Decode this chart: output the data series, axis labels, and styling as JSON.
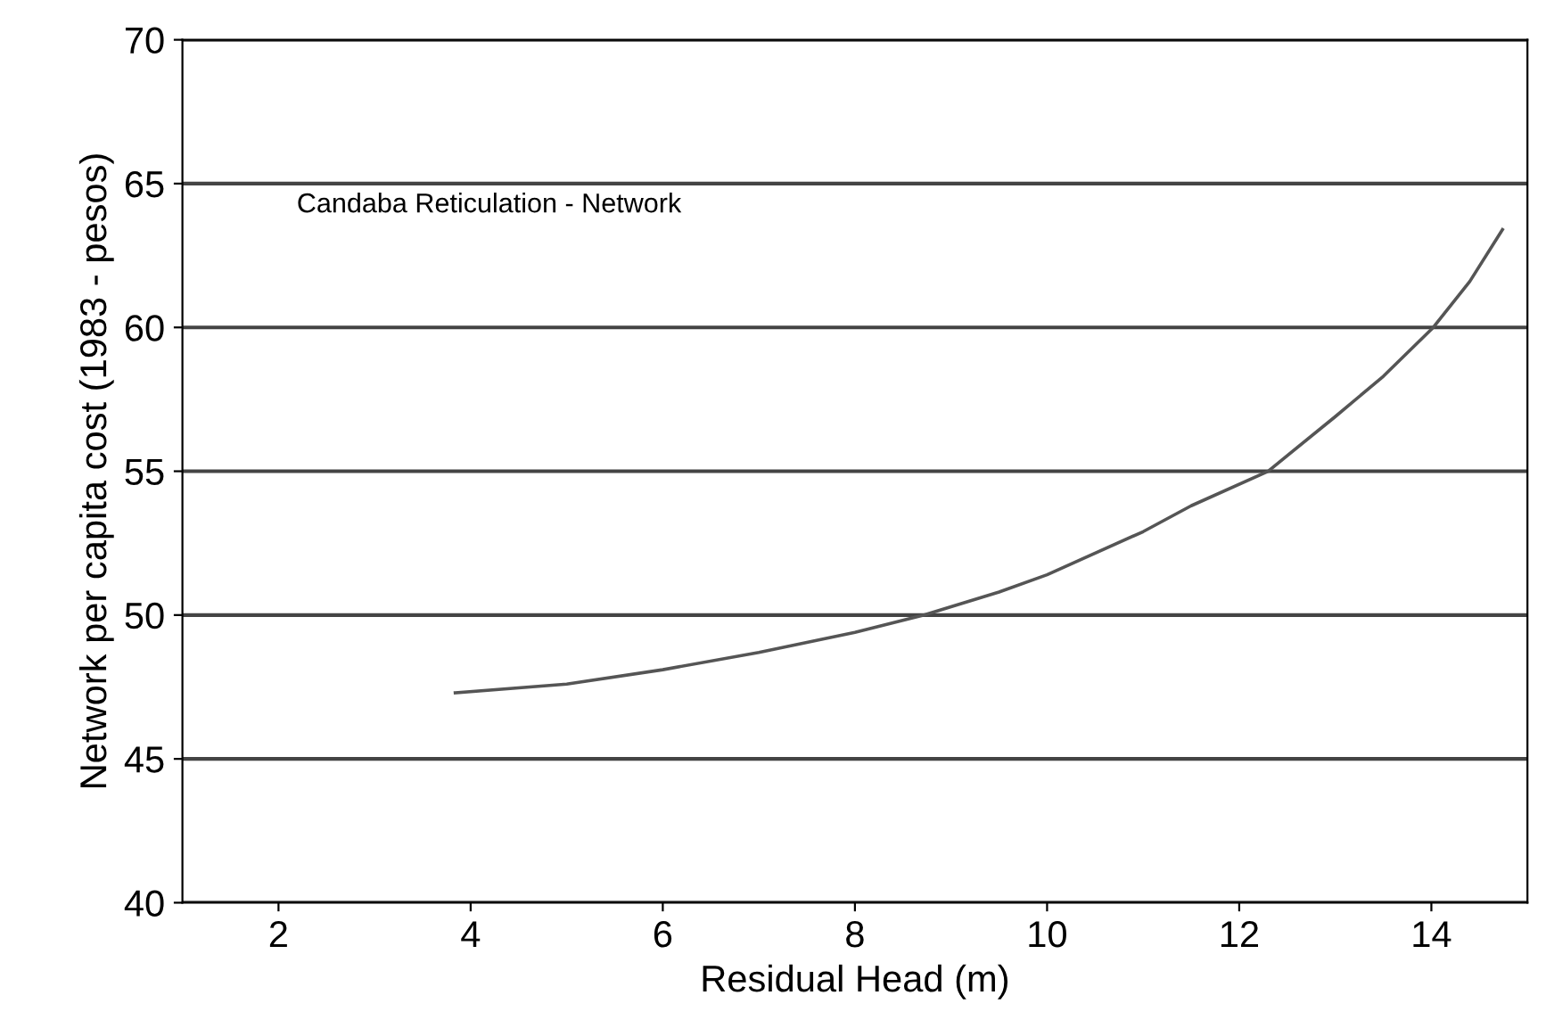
{
  "chart_data": {
    "type": "line",
    "xlabel": "Residual Head (m)",
    "ylabel": "Network per capita cost (1983 - pesos)",
    "annotations": [
      "Candaba Reticulation - Network"
    ],
    "series": [
      {
        "color": "#555555",
        "x": [
          3.84,
          5,
          6,
          7,
          8,
          8.72,
          9.5,
          10,
          11,
          11.5,
          12.3,
          13,
          13.5,
          14.02,
          14.4,
          14.74
        ],
        "values": [
          47.3,
          47.6,
          48.1,
          48.7,
          49.4,
          50,
          50.8,
          51.4,
          52.9,
          53.8,
          55,
          56.9,
          58.3,
          60,
          61.6,
          63.4
        ]
      }
    ],
    "xlim": [
      1,
      15
    ],
    "ylim": [
      40,
      70
    ],
    "xticks": [
      2,
      4,
      6,
      8,
      10,
      12,
      14
    ],
    "yticks": [
      40,
      45,
      50,
      55,
      60,
      65,
      70
    ],
    "grid": "y",
    "legend": false,
    "marker": "none",
    "line_style": "solid"
  }
}
